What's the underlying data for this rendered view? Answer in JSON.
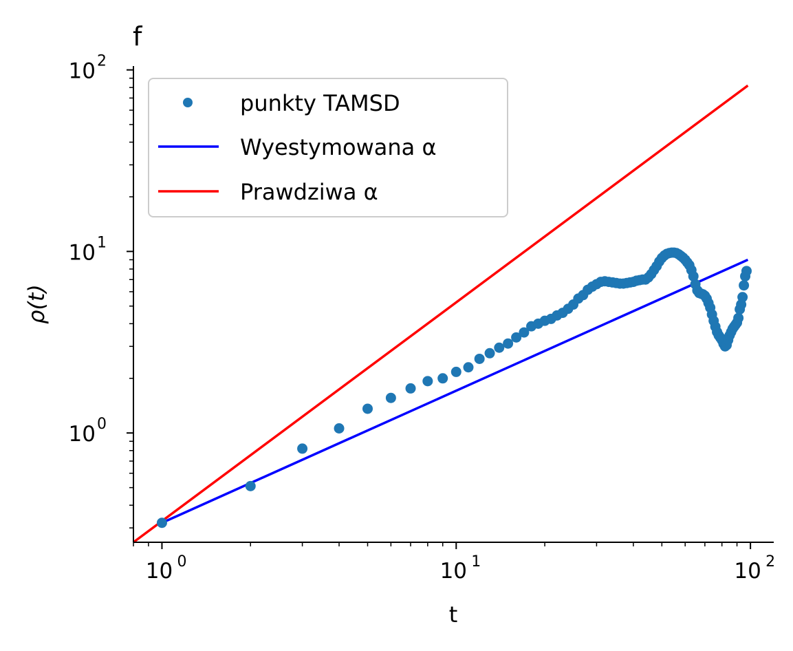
{
  "chart_data": {
    "type": "scatter",
    "panel_label": "f",
    "xlabel": "t",
    "ylabel": "ρ(t)",
    "xscale": "log",
    "yscale": "log",
    "xlim": [
      0.8,
      120
    ],
    "ylim": [
      0.25,
      105
    ],
    "xticks": [
      {
        "base": "10",
        "exp": "0",
        "value": 1
      },
      {
        "base": "10",
        "exp": "1",
        "value": 10
      },
      {
        "base": "10",
        "exp": "2",
        "value": 100
      }
    ],
    "yticks": [
      {
        "base": "10",
        "exp": "0",
        "value": 1
      },
      {
        "base": "10",
        "exp": "1",
        "value": 10
      },
      {
        "base": "10",
        "exp": "2",
        "value": 100
      }
    ],
    "grid": false,
    "legend_position": "top-left",
    "legend": [
      {
        "label": "punkty TAMSD",
        "kind": "marker",
        "color": "#1f77b4"
      },
      {
        "label": "Wyestymowana α",
        "kind": "line",
        "color": "#0000ff"
      },
      {
        "label": "Prawdziwa α",
        "kind": "line",
        "color": "#ff0000"
      }
    ],
    "series": [
      {
        "name": "punkty TAMSD",
        "kind": "scatter",
        "color": "#1f77b4",
        "x": [
          1,
          2,
          3,
          4,
          5,
          6,
          7,
          8,
          9,
          10,
          11,
          12,
          13,
          14,
          15,
          16,
          17,
          18,
          19,
          20,
          21,
          22,
          23,
          24,
          25,
          26,
          27,
          28,
          29,
          30,
          31,
          32,
          33,
          34,
          35,
          36,
          37,
          38,
          39,
          40,
          41,
          42,
          43,
          44,
          45,
          46,
          47,
          48,
          49,
          50,
          51,
          52,
          53,
          54,
          55,
          56,
          57,
          58,
          59,
          60,
          61,
          62,
          63,
          64,
          65,
          66,
          67,
          68,
          69,
          70,
          71,
          72,
          73,
          74,
          75,
          76,
          77,
          78,
          79,
          80,
          81,
          82,
          83,
          84,
          85,
          86,
          87,
          88,
          89,
          90,
          91,
          92,
          93,
          94,
          95,
          96,
          97
        ],
        "y": [
          0.32,
          0.51,
          0.82,
          1.06,
          1.36,
          1.56,
          1.76,
          1.93,
          2.0,
          2.17,
          2.3,
          2.56,
          2.75,
          2.95,
          3.11,
          3.36,
          3.58,
          3.87,
          4.0,
          4.15,
          4.25,
          4.44,
          4.59,
          4.83,
          5.1,
          5.5,
          5.75,
          6.15,
          6.4,
          6.6,
          6.8,
          6.85,
          6.8,
          6.75,
          6.7,
          6.65,
          6.65,
          6.7,
          6.75,
          6.8,
          6.9,
          6.95,
          7.0,
          7.0,
          7.2,
          7.5,
          7.9,
          8.3,
          8.8,
          9.2,
          9.5,
          9.7,
          9.8,
          9.85,
          9.85,
          9.8,
          9.65,
          9.45,
          9.25,
          9.0,
          8.7,
          8.4,
          7.9,
          7.3,
          6.6,
          6.1,
          5.9,
          5.85,
          5.8,
          5.7,
          5.5,
          5.2,
          4.9,
          4.5,
          4.15,
          3.85,
          3.6,
          3.45,
          3.35,
          3.25,
          3.1,
          3.0,
          3.05,
          3.25,
          3.45,
          3.6,
          3.75,
          3.85,
          3.95,
          4.05,
          4.3,
          4.8,
          5.1,
          5.6,
          6.5,
          7.3,
          7.8
        ]
      },
      {
        "name": "Wyestymowana α",
        "kind": "line",
        "color": "#0000ff",
        "x": [
          1,
          98
        ],
        "y": [
          0.32,
          9.0
        ]
      },
      {
        "name": "Prawdziwa α",
        "kind": "line",
        "color": "#ff0000",
        "x": [
          0.8,
          98
        ],
        "y": [
          0.25,
          82
        ]
      }
    ]
  }
}
